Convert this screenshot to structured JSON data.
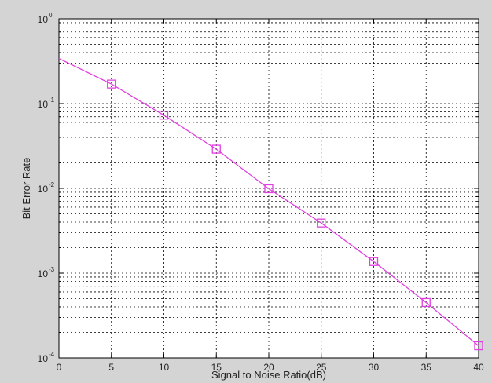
{
  "chart_data": {
    "type": "line",
    "xlabel": "Signal to Noise Ratio(dB)",
    "ylabel": "Bit Error Rate",
    "xlim": [
      0,
      40
    ],
    "ylim": [
      0.0001,
      1
    ],
    "yscale": "log",
    "grid": true,
    "x_ticks": [
      0,
      5,
      10,
      15,
      20,
      25,
      30,
      35,
      40
    ],
    "x_tick_labels": [
      "0",
      "5",
      "10",
      "15",
      "20",
      "25",
      "30",
      "35",
      "40"
    ],
    "y_ticks": [
      0.0001,
      0.001,
      0.01,
      0.1,
      1
    ],
    "y_tick_labels": [
      {
        "base": "10",
        "exp": "-4"
      },
      {
        "base": "10",
        "exp": "-3"
      },
      {
        "base": "10",
        "exp": "-2"
      },
      {
        "base": "10",
        "exp": "-1"
      },
      {
        "base": "10",
        "exp": "0"
      }
    ],
    "series": [
      {
        "color": "#e040e0",
        "marker": "square",
        "x": [
          0,
          5,
          10,
          15,
          20,
          25,
          30,
          35,
          40
        ],
        "y": [
          0.34,
          0.17,
          0.073,
          0.029,
          0.0099,
          0.0039,
          0.00137,
          0.00045,
          0.000139
        ],
        "marker_x": [
          5,
          10,
          15,
          20,
          25,
          30,
          35,
          40
        ]
      }
    ]
  }
}
